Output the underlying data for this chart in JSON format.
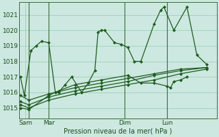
{
  "bg_color": "#cde8e0",
  "grid_color": "#9ecfbb",
  "line_color": "#1a5c1a",
  "title": "Pression niveau de la mer( hPa )",
  "ylabel_ticks": [
    1015,
    1016,
    1017,
    1018,
    1019,
    1020,
    1021
  ],
  "ylim": [
    1014.3,
    1021.8
  ],
  "xlim": [
    0,
    30
  ],
  "day_labels": [
    "Sam",
    "Mar",
    "Dim",
    "Lun"
  ],
  "day_positions": [
    1.0,
    4.5,
    16.0,
    22.5
  ],
  "vline_positions": [
    1.5,
    4.5,
    16.0,
    22.5
  ],
  "series1_x": [
    0.2,
    0.8,
    1.8,
    2.6,
    3.4,
    4.5,
    5.5,
    6.0,
    7.0,
    8.0,
    9.5,
    10.5,
    11.5,
    12.0,
    12.5,
    13.0,
    14.5,
    15.5,
    16.5,
    17.5,
    18.5,
    20.5,
    21.5,
    22.0,
    23.5,
    25.5,
    27.0,
    28.5
  ],
  "series1_y": [
    1017.0,
    1015.8,
    1018.7,
    1019.0,
    1019.3,
    1019.2,
    1016.0,
    1016.0,
    1016.5,
    1017.0,
    1016.0,
    1016.6,
    1017.4,
    1019.9,
    1020.0,
    1020.0,
    1019.2,
    1019.1,
    1018.9,
    1018.0,
    1018.0,
    1020.4,
    1021.3,
    1021.5,
    1020.0,
    1021.5,
    1018.4,
    1017.8
  ],
  "series2_x": [
    0.2,
    1.5,
    4.5,
    8.5,
    12.5,
    16.5,
    20.5,
    24.5,
    28.5
  ],
  "series2_y": [
    1015.8,
    1015.5,
    1015.9,
    1016.3,
    1016.6,
    1016.9,
    1017.2,
    1017.5,
    1017.6
  ],
  "series3_x": [
    0.2,
    1.5,
    4.5,
    8.5,
    12.5,
    16.5,
    20.5,
    24.5,
    28.5
  ],
  "series3_y": [
    1015.2,
    1015.0,
    1015.5,
    1015.9,
    1016.2,
    1016.5,
    1016.8,
    1017.2,
    1017.5
  ],
  "series4_x": [
    0.2,
    1.5,
    4.5,
    8.5,
    12.5,
    16.5,
    20.5,
    24.5,
    28.5
  ],
  "series4_y": [
    1015.4,
    1015.2,
    1015.7,
    1016.1,
    1016.4,
    1016.7,
    1017.1,
    1017.4,
    1017.6
  ],
  "series5_x": [
    0.2,
    1.5,
    4.5,
    6.0,
    8.5,
    12.5,
    16.5,
    18.5,
    20.5,
    22.5,
    23.0,
    23.5,
    24.5,
    25.5
  ],
  "series5_y": [
    1015.0,
    1014.9,
    1015.8,
    1016.1,
    1016.5,
    1016.8,
    1017.1,
    1016.6,
    1016.6,
    1016.4,
    1016.3,
    1016.7,
    1016.8,
    1017.0
  ]
}
